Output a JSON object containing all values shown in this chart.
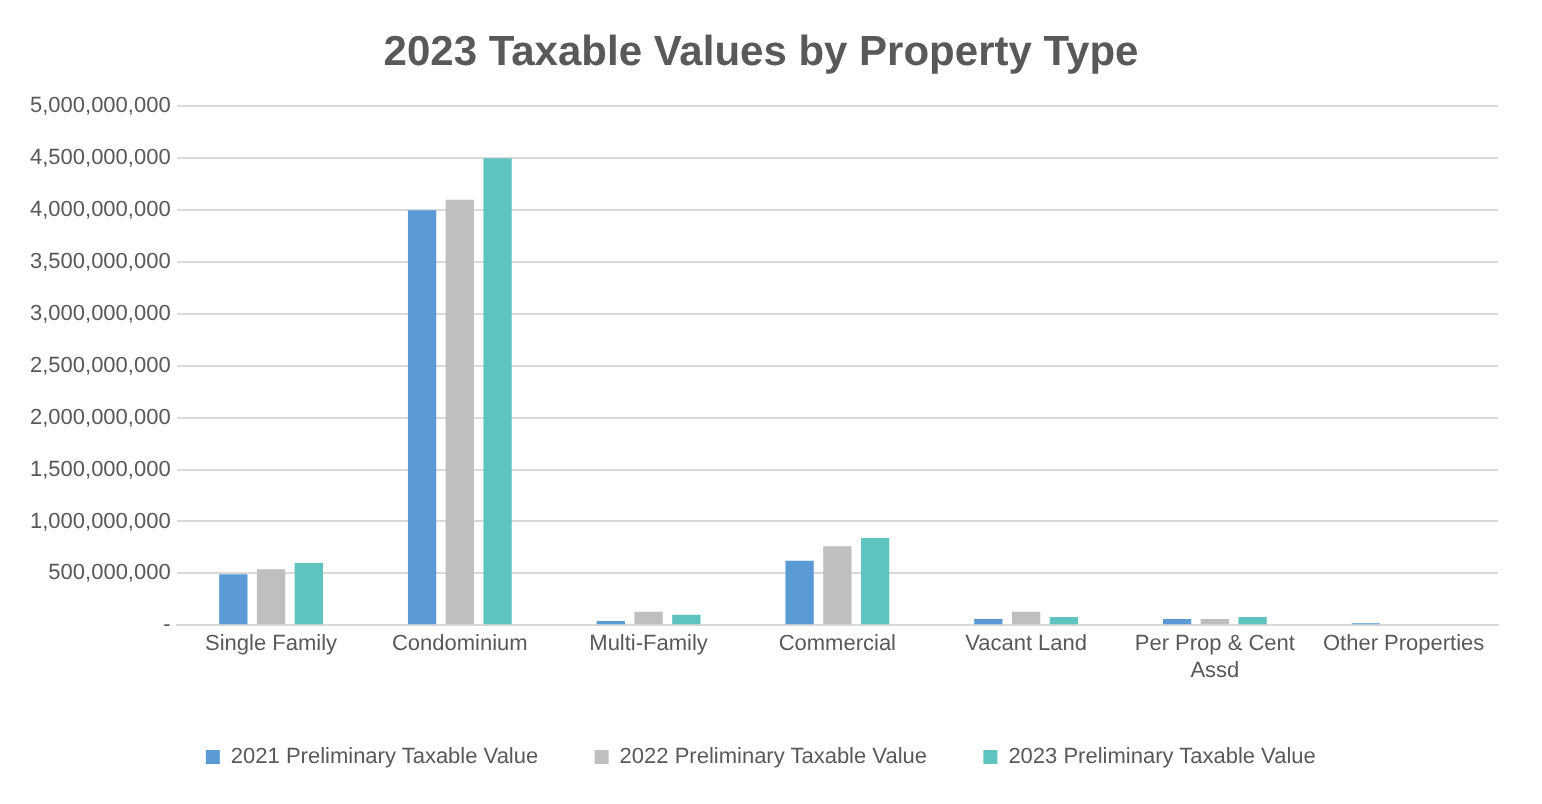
{
  "chart_data": {
    "type": "bar",
    "title": "2023 Taxable Values by Property Type",
    "categories": [
      "Single Family",
      "Condominium",
      "Multi-Family",
      "Commercial",
      "Vacant Land",
      "Per Prop & Cent Assd",
      "Other Properties"
    ],
    "series": [
      {
        "name": "2021 Preliminary Taxable Value",
        "color": "#5b9bd5",
        "values": [
          490000000,
          4000000000,
          40000000,
          620000000,
          60000000,
          60000000,
          20000000
        ]
      },
      {
        "name": "2022 Preliminary Taxable Value",
        "color": "#bfbfbf",
        "values": [
          540000000,
          4100000000,
          130000000,
          760000000,
          130000000,
          60000000,
          0
        ]
      },
      {
        "name": "2023 Preliminary Taxable Value",
        "color": "#5fc3c0",
        "values": [
          600000000,
          4500000000,
          100000000,
          840000000,
          80000000,
          80000000,
          0
        ]
      }
    ],
    "ylim": [
      0,
      5000000000
    ],
    "yticks": [
      {
        "value": 0,
        "label": "-"
      },
      {
        "value": 500000000,
        "label": "500,000,000"
      },
      {
        "value": 1000000000,
        "label": "1,000,000,000"
      },
      {
        "value": 1500000000,
        "label": "1,500,000,000"
      },
      {
        "value": 2000000000,
        "label": "2,000,000,000"
      },
      {
        "value": 2500000000,
        "label": "2,500,000,000"
      },
      {
        "value": 3000000000,
        "label": "3,000,000,000"
      },
      {
        "value": 3500000000,
        "label": "3,500,000,000"
      },
      {
        "value": 4000000000,
        "label": "4,000,000,000"
      },
      {
        "value": 4500000000,
        "label": "4,500,000,000"
      },
      {
        "value": 5000000000,
        "label": "5,000,000,000"
      }
    ],
    "grid": "y",
    "legend": "bottom"
  }
}
